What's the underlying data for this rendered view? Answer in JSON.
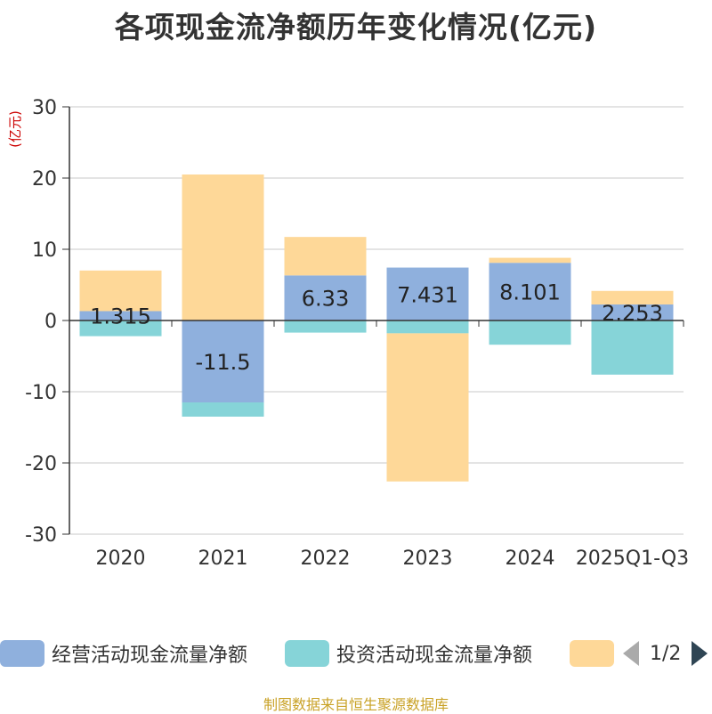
{
  "chart_data": {
    "type": "bar",
    "stacked": true,
    "title": "各项现金流净额历年变化情况(亿元)",
    "ylabel": "(亿元)",
    "xlabel": "",
    "ylim": [
      -30,
      30
    ],
    "yticks": [
      30,
      20,
      10,
      0,
      -10,
      -20,
      -30
    ],
    "categories": [
      "2020",
      "2021",
      "2022",
      "2023",
      "2024",
      "2025Q1-Q3"
    ],
    "series": [
      {
        "name": "经营活动现金流量净额",
        "color": "#8fb0dd",
        "values": [
          1.315,
          -11.5,
          6.33,
          7.431,
          8.101,
          2.253
        ],
        "show_labels": true
      },
      {
        "name": "投资活动现金流量净额",
        "color": "#86d4d8",
        "values": [
          -2.2,
          -2.0,
          -1.7,
          -1.8,
          -3.4,
          -7.6
        ],
        "show_labels": false
      },
      {
        "name": "",
        "color": "#fed898",
        "values": [
          5.7,
          20.5,
          5.4,
          -20.8,
          0.7,
          1.9
        ],
        "show_labels": false
      }
    ],
    "value_labels": [
      "1.315",
      "-11.5",
      "6.33",
      "7.431",
      "8.101",
      "2.253"
    ],
    "legend": {
      "page": "1/2",
      "placement": "bottom"
    }
  },
  "source_text": "制图数据来自恒生聚源数据库"
}
